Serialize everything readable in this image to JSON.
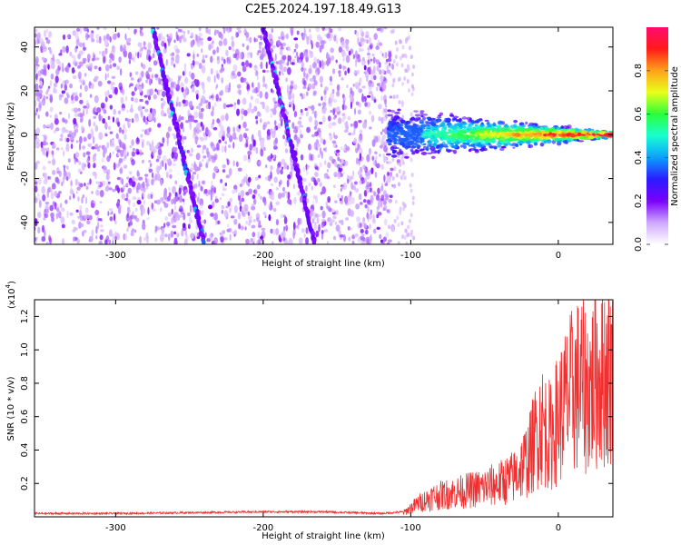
{
  "chart_data": [
    {
      "type": "heatmap",
      "title": "C2E5.2024.197.18.49.G13",
      "xlabel": "Height of straight line (km)",
      "ylabel": "Frequency (Hz)",
      "xlim": [
        -355,
        37
      ],
      "ylim": [
        -50,
        49
      ],
      "x_ticks": [
        -300,
        -200,
        -100,
        0
      ],
      "y_ticks": [
        -40,
        -20,
        0,
        20,
        40
      ],
      "colorbar": {
        "label": "Normalized spectral amplitude",
        "range": [
          0,
          1
        ],
        "ticks": [
          "0.0",
          "0.2",
          "0.4",
          "0.6",
          "0.8"
        ],
        "colormap": [
          "#ffffff",
          "#cfa8ff",
          "#7a00ff",
          "#2b1bff",
          "#0aa0ff",
          "#19ffd0",
          "#2cff3a",
          "#e9ff1a",
          "#ffa21a",
          "#ff1a1a",
          "#ff0a6e"
        ]
      },
      "features": {
        "noise_region_x": [
          -355,
          -112
        ],
        "signal_band_x": [
          -115,
          37
        ],
        "signal_band_peak_amplitude": 0.95,
        "streaks": [
          {
            "x_start": -275,
            "y_start": 49,
            "x_end": -240,
            "y_end": -50
          },
          {
            "x_start": -200,
            "y_start": 49,
            "x_end": -165,
            "y_end": -50
          }
        ]
      }
    },
    {
      "type": "line",
      "xlabel": "Height of straight line (km)",
      "ylabel": "SNR (10 * v/v)",
      "y_multiplier": "(x10",
      "y_multiplier_exp": "4",
      "xlim": [
        -355,
        37
      ],
      "ylim": [
        0,
        1.3
      ],
      "x_ticks": [
        -300,
        -200,
        -100,
        0
      ],
      "y_ticks": [
        0.2,
        0.4,
        0.6,
        0.8,
        1.0,
        1.2
      ],
      "series": [
        {
          "color": "#f03030",
          "x": [
            -355,
            -300,
            -250,
            -200,
            -160,
            -120,
            -105,
            -95,
            -85,
            -70,
            -60,
            -50,
            -40,
            -30,
            -20,
            -12,
            -5,
            0,
            5,
            10,
            15,
            20,
            25,
            30,
            37
          ],
          "values": [
            0.02,
            0.02,
            0.025,
            0.03,
            0.03,
            0.02,
            0.03,
            0.1,
            0.15,
            0.18,
            0.2,
            0.22,
            0.25,
            0.3,
            0.45,
            0.7,
            0.6,
            0.75,
            0.85,
            0.95,
            1.0,
            0.95,
            1.02,
            1.08,
            1.08
          ]
        }
      ]
    }
  ]
}
